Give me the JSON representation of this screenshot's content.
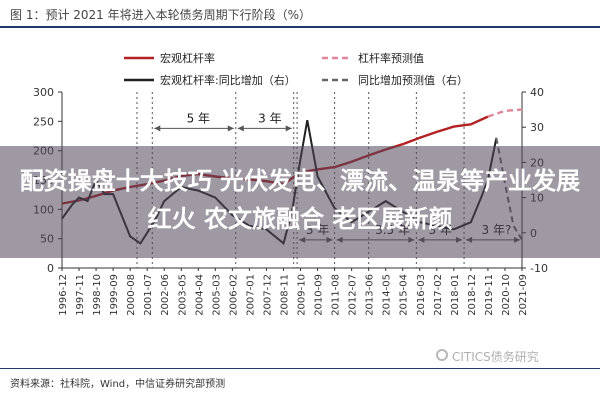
{
  "title": "图 1：预计 2021 年将进入本轮债务周期下行阶段（%）",
  "source": "资料来源：社科院，Wind，中信证券研究部预测",
  "headline": "配资操盘十大技巧 光伏发电、漂流、温泉等产业发展红火 农文旅融合 老区展新颜",
  "watermark": "CITICS债务研究",
  "chart_data": {
    "type": "line",
    "x": [
      "1996-12",
      "1997-11",
      "1998-10",
      "1999-09",
      "2000-08",
      "2001-07",
      "2002-06",
      "2003-05",
      "2004-04",
      "2005-03",
      "2006-02",
      "2007-01",
      "2007-12",
      "2008-11",
      "2009-10",
      "2010-09",
      "2011-08",
      "2012-07",
      "2013-06",
      "2014-05",
      "2015-04",
      "2016-03",
      "2017-02",
      "2018-01",
      "2018-12",
      "2019-11",
      "2020-10",
      "2021-09"
    ],
    "ylim_left": [
      0,
      300
    ],
    "yticks_left": [
      0,
      50,
      100,
      150,
      200,
      250,
      300
    ],
    "ylim_right": [
      -10,
      40
    ],
    "yticks_right": [
      -10,
      0,
      10,
      20,
      30,
      40
    ],
    "legend": [
      "宏观杠杆率",
      "杠杆率预测值",
      "宏观杠杆率:同比增加（右）",
      "同比增加预测值（右）"
    ],
    "legend_position": "top",
    "series": [
      {
        "name": "宏观杠杆率",
        "axis": "left",
        "style": "solid",
        "color": "#b22222",
        "x": [
          0,
          1,
          2,
          3,
          4,
          5,
          6,
          7,
          8,
          9,
          10,
          11,
          12,
          13,
          14,
          15,
          16,
          17,
          18,
          19,
          20,
          21,
          22,
          23,
          24,
          25
        ],
        "values": [
          110,
          115,
          123,
          132,
          138,
          143,
          149,
          157,
          160,
          156,
          153,
          151,
          148,
          143,
          163,
          168,
          172,
          181,
          192,
          202,
          211,
          222,
          232,
          241,
          245,
          258
        ]
      },
      {
        "name": "杠杆率预测值",
        "axis": "left",
        "style": "dashed",
        "color": "#e0869b",
        "x": [
          25,
          26,
          27
        ],
        "values": [
          258,
          268,
          270
        ]
      },
      {
        "name": "宏观杠杆率:同比增加（右）",
        "axis": "right",
        "style": "solid",
        "color": "#222222",
        "x": [
          0,
          0.6,
          1,
          1.5,
          2,
          2.5,
          3,
          3.5,
          4,
          4.6,
          5,
          5.5,
          6,
          7,
          8,
          9,
          10,
          11,
          12,
          13,
          13.5,
          14,
          14.4,
          15,
          16,
          17,
          18,
          19,
          20,
          21,
          22,
          23,
          24,
          24.6,
          25,
          25.5
        ],
        "values": [
          4,
          8,
          10,
          9,
          15,
          11,
          11,
          5,
          -1,
          -3,
          0,
          4,
          9,
          13,
          12,
          10,
          5,
          2,
          1,
          -3,
          6,
          21,
          32,
          16,
          7,
          3,
          6,
          9,
          6,
          3,
          2,
          1,
          3,
          10,
          15,
          27
        ]
      },
      {
        "name": "同比增加预测值（右）",
        "axis": "right",
        "style": "dashed",
        "color": "#666666",
        "x": [
          25.5,
          26,
          26.5,
          27
        ],
        "values": [
          27,
          14,
          2,
          -2
        ]
      }
    ],
    "vlines_x": [
      4.4,
      5.3,
      10.2,
      13.6,
      13.8,
      16.0,
      18.0,
      20.8,
      23.6
    ],
    "annotations": [
      {
        "text": "5 年",
        "x": 8.0,
        "y": 238,
        "span": [
          5.3,
          10.2
        ],
        "axis": "left"
      },
      {
        "text": "3 年",
        "x": 12.2,
        "y": 238,
        "span": [
          10.2,
          13.6
        ],
        "axis": "left"
      },
      {
        "text": "3 年",
        "x": 15.0,
        "y": -2,
        "span": [
          13.8,
          16.0
        ],
        "axis": "right"
      },
      {
        "text": "3.5 年",
        "x": 19.4,
        "y": -2,
        "span": [
          16.0,
          20.8
        ],
        "axis": "right"
      },
      {
        "text": "3 年",
        "x": 22.2,
        "y": -2,
        "span": [
          20.8,
          23.6
        ],
        "axis": "right"
      },
      {
        "text": "3 年?",
        "x": 25.5,
        "y": -2,
        "span": [
          23.6,
          27.0
        ],
        "axis": "right"
      }
    ]
  }
}
